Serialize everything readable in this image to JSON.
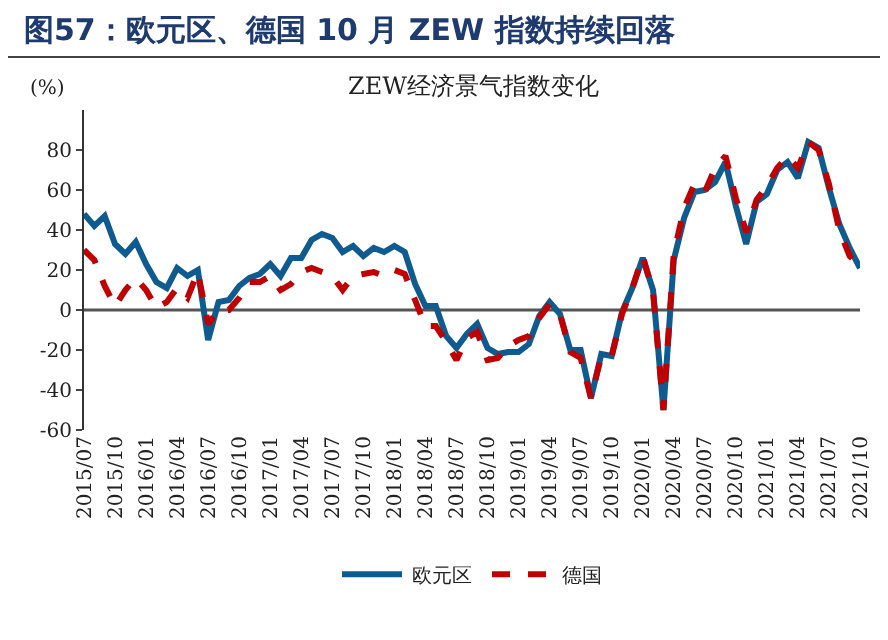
{
  "chart_data": {
    "type": "line",
    "title": "图57：欧元区、德国 10 月 ZEW 指数持续回落",
    "subtitle": "ZEW经济景气指数变化",
    "ylabel": "(%)",
    "categories": [
      "2015/07",
      null,
      null,
      "2015/10",
      null,
      null,
      "2016/01",
      null,
      null,
      "2016/04",
      null,
      null,
      "2016/07",
      null,
      null,
      "2016/10",
      null,
      null,
      "2017/01",
      null,
      null,
      "2017/04",
      null,
      null,
      "2017/07",
      null,
      null,
      "2017/10",
      null,
      null,
      "2018/01",
      null,
      null,
      "2018/04",
      null,
      null,
      "2018/07",
      null,
      null,
      "2018/10",
      null,
      null,
      "2019/01",
      null,
      null,
      "2019/04",
      null,
      null,
      "2019/07",
      null,
      null,
      "2019/10",
      null,
      null,
      "2020/01",
      null,
      null,
      "2020/04",
      null,
      null,
      "2020/07",
      null,
      null,
      "2020/10",
      null,
      null,
      "2021/01",
      null,
      null,
      "2021/04",
      null,
      null,
      "2021/07",
      null,
      null,
      "2021/10"
    ],
    "series": [
      {
        "name": "欧元区",
        "color": "#0f5b8f",
        "line_style": "solid",
        "values": [
          48,
          42,
          47,
          33,
          28,
          34,
          23,
          14,
          11,
          21,
          17,
          20,
          -15,
          4,
          5,
          12,
          16,
          18,
          23,
          17,
          26,
          26,
          35,
          38,
          36,
          29,
          32,
          27,
          31,
          29,
          32,
          29,
          13,
          2,
          2,
          -13,
          -19,
          -12,
          -7,
          -19,
          -22,
          -21,
          -21,
          -17,
          -3,
          4,
          -2,
          -20,
          -20,
          -44,
          -22,
          -23,
          -1,
          11,
          26,
          10,
          -50,
          25,
          46,
          59,
          60,
          64,
          74,
          52,
          33,
          54,
          58,
          70,
          74,
          66,
          84,
          81,
          61,
          43,
          31,
          21
        ]
      },
      {
        "name": "德国",
        "color": "#c00000",
        "line_style": "dashed",
        "values": [
          30,
          25,
          12,
          2,
          10,
          16,
          10,
          1,
          4,
          11,
          6,
          19,
          -7,
          0,
          0,
          6,
          14,
          14,
          17,
          10,
          13,
          19,
          21,
          19,
          17,
          10,
          17,
          18,
          19,
          17,
          20,
          18,
          5,
          -8,
          -8,
          -16,
          -25,
          -14,
          -11,
          -25,
          -24,
          -18,
          -15,
          -13,
          -4,
          3,
          -2,
          -21,
          -24,
          -44,
          -23,
          -23,
          -2,
          11,
          27,
          9,
          -50,
          28,
          51,
          63,
          59,
          71,
          77,
          56,
          39,
          55,
          62,
          71,
          77,
          71,
          84,
          80,
          63,
          40,
          27,
          22
        ]
      }
    ],
    "ylim": [
      -60,
      100
    ],
    "yticks": [
      -60,
      -40,
      -20,
      0,
      20,
      40,
      60,
      80
    ],
    "ref_lines": [
      {
        "axis": "y",
        "value": 0,
        "color": "#555555"
      }
    ],
    "grid": false,
    "legend": "bottom",
    "marker": "none"
  }
}
